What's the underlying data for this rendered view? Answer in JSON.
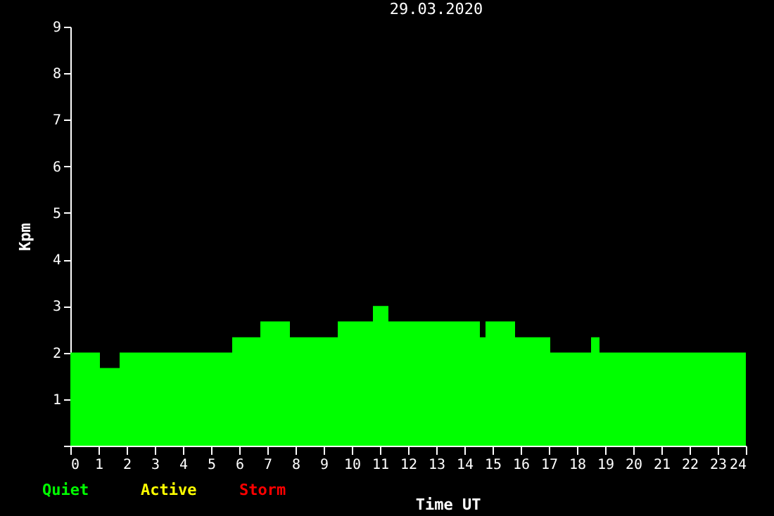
{
  "chart_data": {
    "type": "histogram",
    "title": "29.03.2020",
    "xlabel": "Time UT",
    "ylabel": "Kpm",
    "bins": [
      0,
      1.05,
      1.75,
      5.75,
      6.75,
      7.8,
      9.5,
      10.75,
      11.3,
      14.55,
      14.75,
      15.8,
      17.05,
      18.5,
      18.8,
      24
    ],
    "series": [
      {
        "name": "Quiet",
        "color": "#00ff00",
        "values": [
          2,
          1.67,
          2,
          2.33,
          2.67,
          2.33,
          2.67,
          3,
          2.67,
          2.33,
          2.67,
          2.33,
          2,
          2.33,
          2
        ]
      }
    ],
    "annotations": [
      "Active",
      "Storm"
    ],
    "xlim": [
      0,
      24
    ],
    "xticks": [
      0,
      1,
      2,
      3,
      4,
      5,
      6,
      7,
      8,
      9,
      10,
      11,
      12,
      13,
      14,
      15,
      16,
      17,
      18,
      19,
      20,
      21,
      22,
      23,
      24
    ],
    "ylim": [
      0,
      9
    ],
    "yticks": [
      {
        "value": 0,
        "label": null
      },
      1,
      2,
      3,
      4,
      5,
      6,
      7,
      8,
      9
    ],
    "grid": false
  }
}
